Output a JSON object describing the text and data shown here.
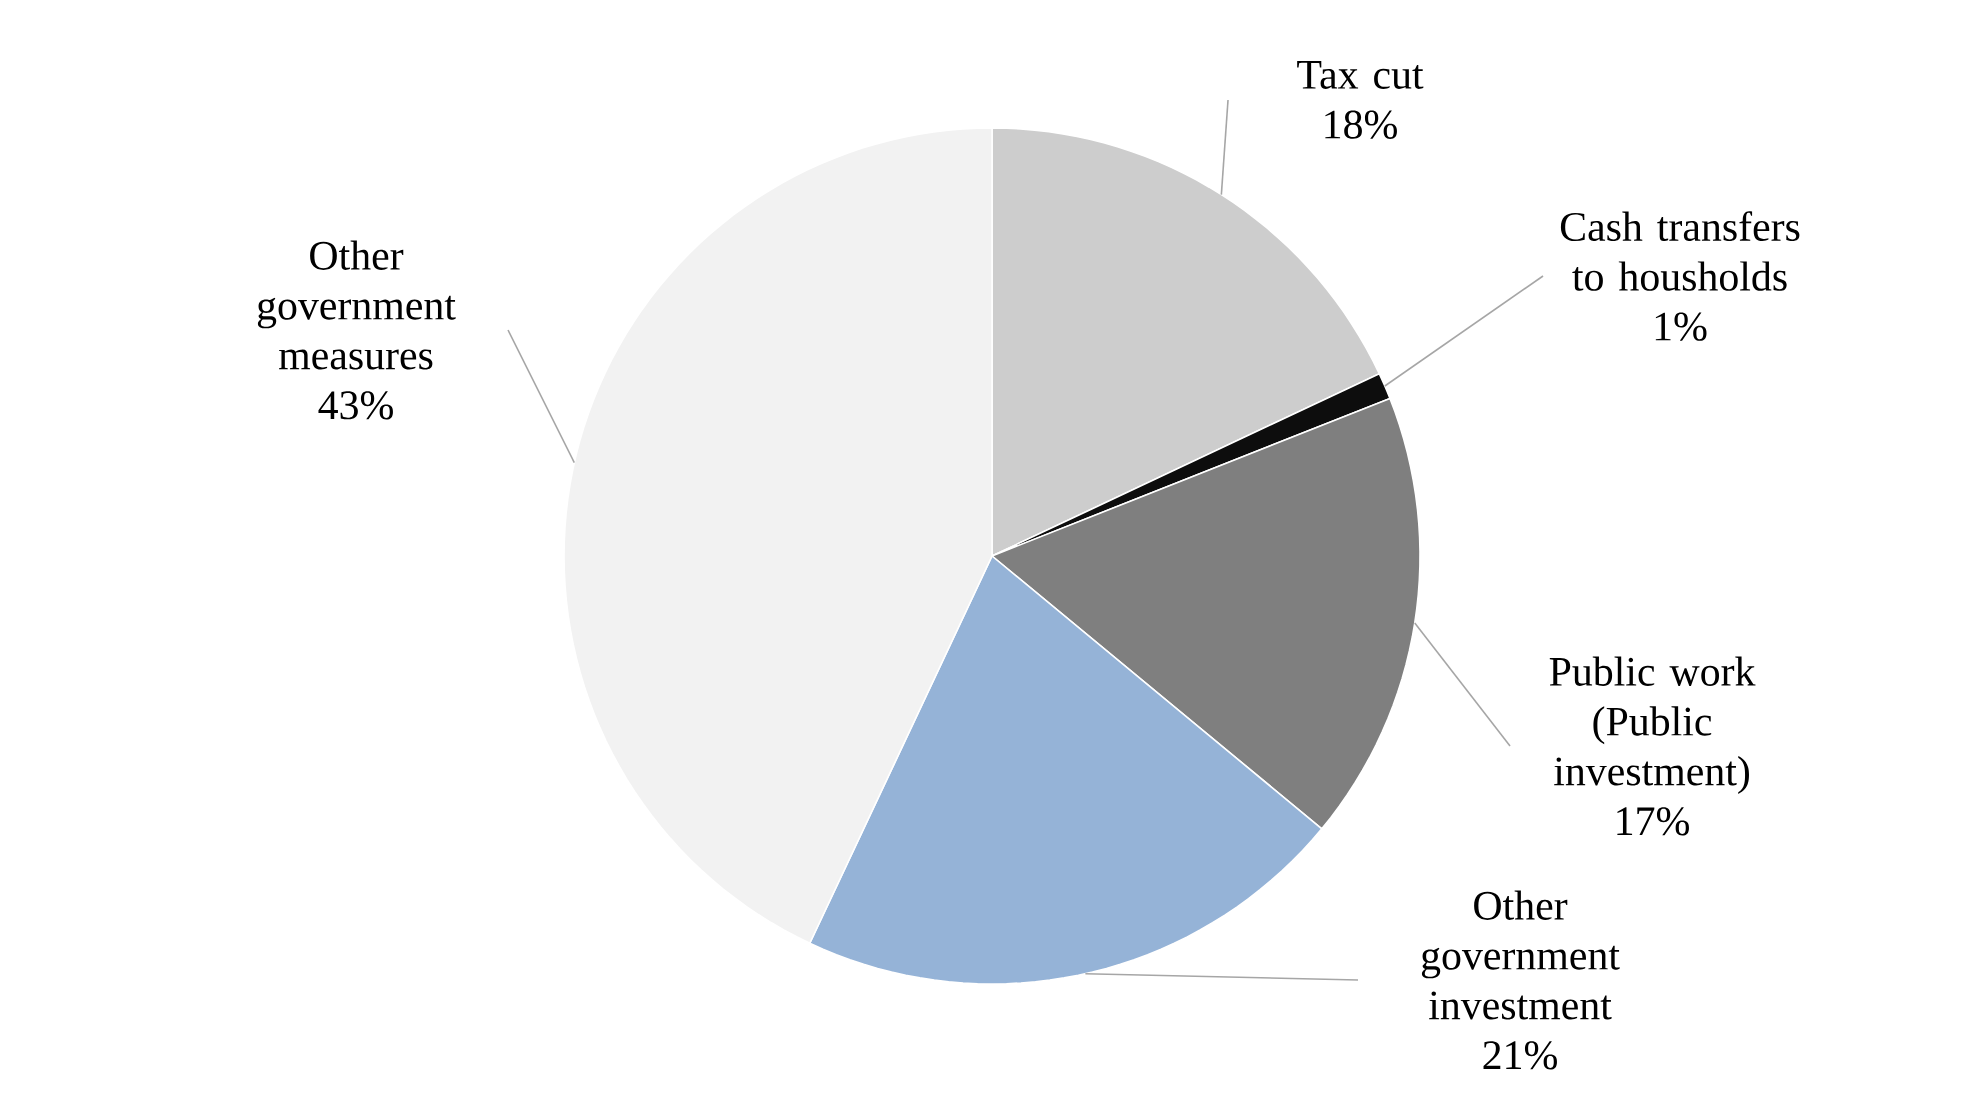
{
  "chart_data": {
    "type": "pie",
    "categories": [
      "Tax cut",
      "Cash transfers to housholds",
      "Public work (Public investment)",
      "Other government investment",
      "Other government measures"
    ],
    "values": [
      18,
      1,
      17,
      21,
      43
    ],
    "value_labels": [
      "18%",
      "1%",
      "17%",
      "21%",
      "43%"
    ],
    "colors": [
      "#cdcdcd",
      "#0d0d0d",
      "#7f7f7f",
      "#95b3d7",
      "#f2f2f2"
    ]
  }
}
